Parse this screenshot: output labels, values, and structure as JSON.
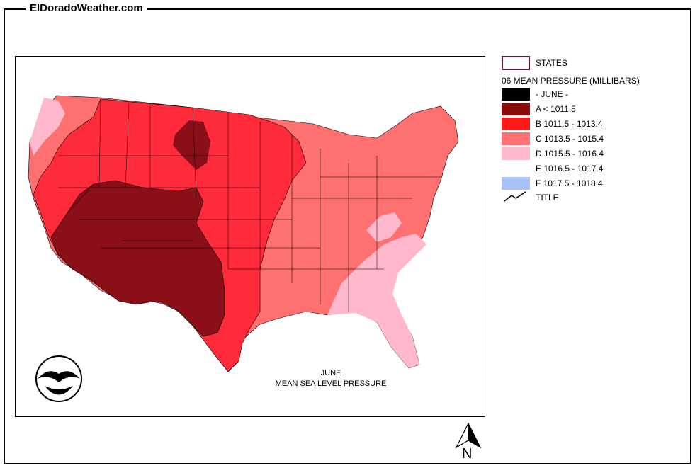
{
  "site_title": "ElDoradoWeather.com",
  "caption": {
    "line1": "JUNE",
    "line2": "MEAN SEA LEVEL PRESSURE"
  },
  "legend": {
    "states_label": "STATES",
    "heading": "06 MEAN PRESSURE (MILLIBARS)",
    "items": [
      {
        "label": "- JUNE -",
        "color": "#000000"
      },
      {
        "label": "A < 1011.5",
        "color": "#8b0a0a"
      },
      {
        "label": "B 1011.5 - 1013.4",
        "color": "#ff1a1a"
      },
      {
        "label": "C 1013.5 - 1015.4",
        "color": "#ff7070"
      },
      {
        "label": "D 1015.5 - 1016.4",
        "color": "#ffb8cc"
      },
      {
        "label": "E 1016.5 - 1017.4",
        "color": "#ffffff"
      },
      {
        "label": "F 1017.5 - 1018.4",
        "color": "#a9c2f5"
      }
    ],
    "title_label": "TITLE"
  },
  "north_label": "N",
  "logo_icon": "noaa-logo-icon",
  "arrow_icon": "north-arrow-icon"
}
